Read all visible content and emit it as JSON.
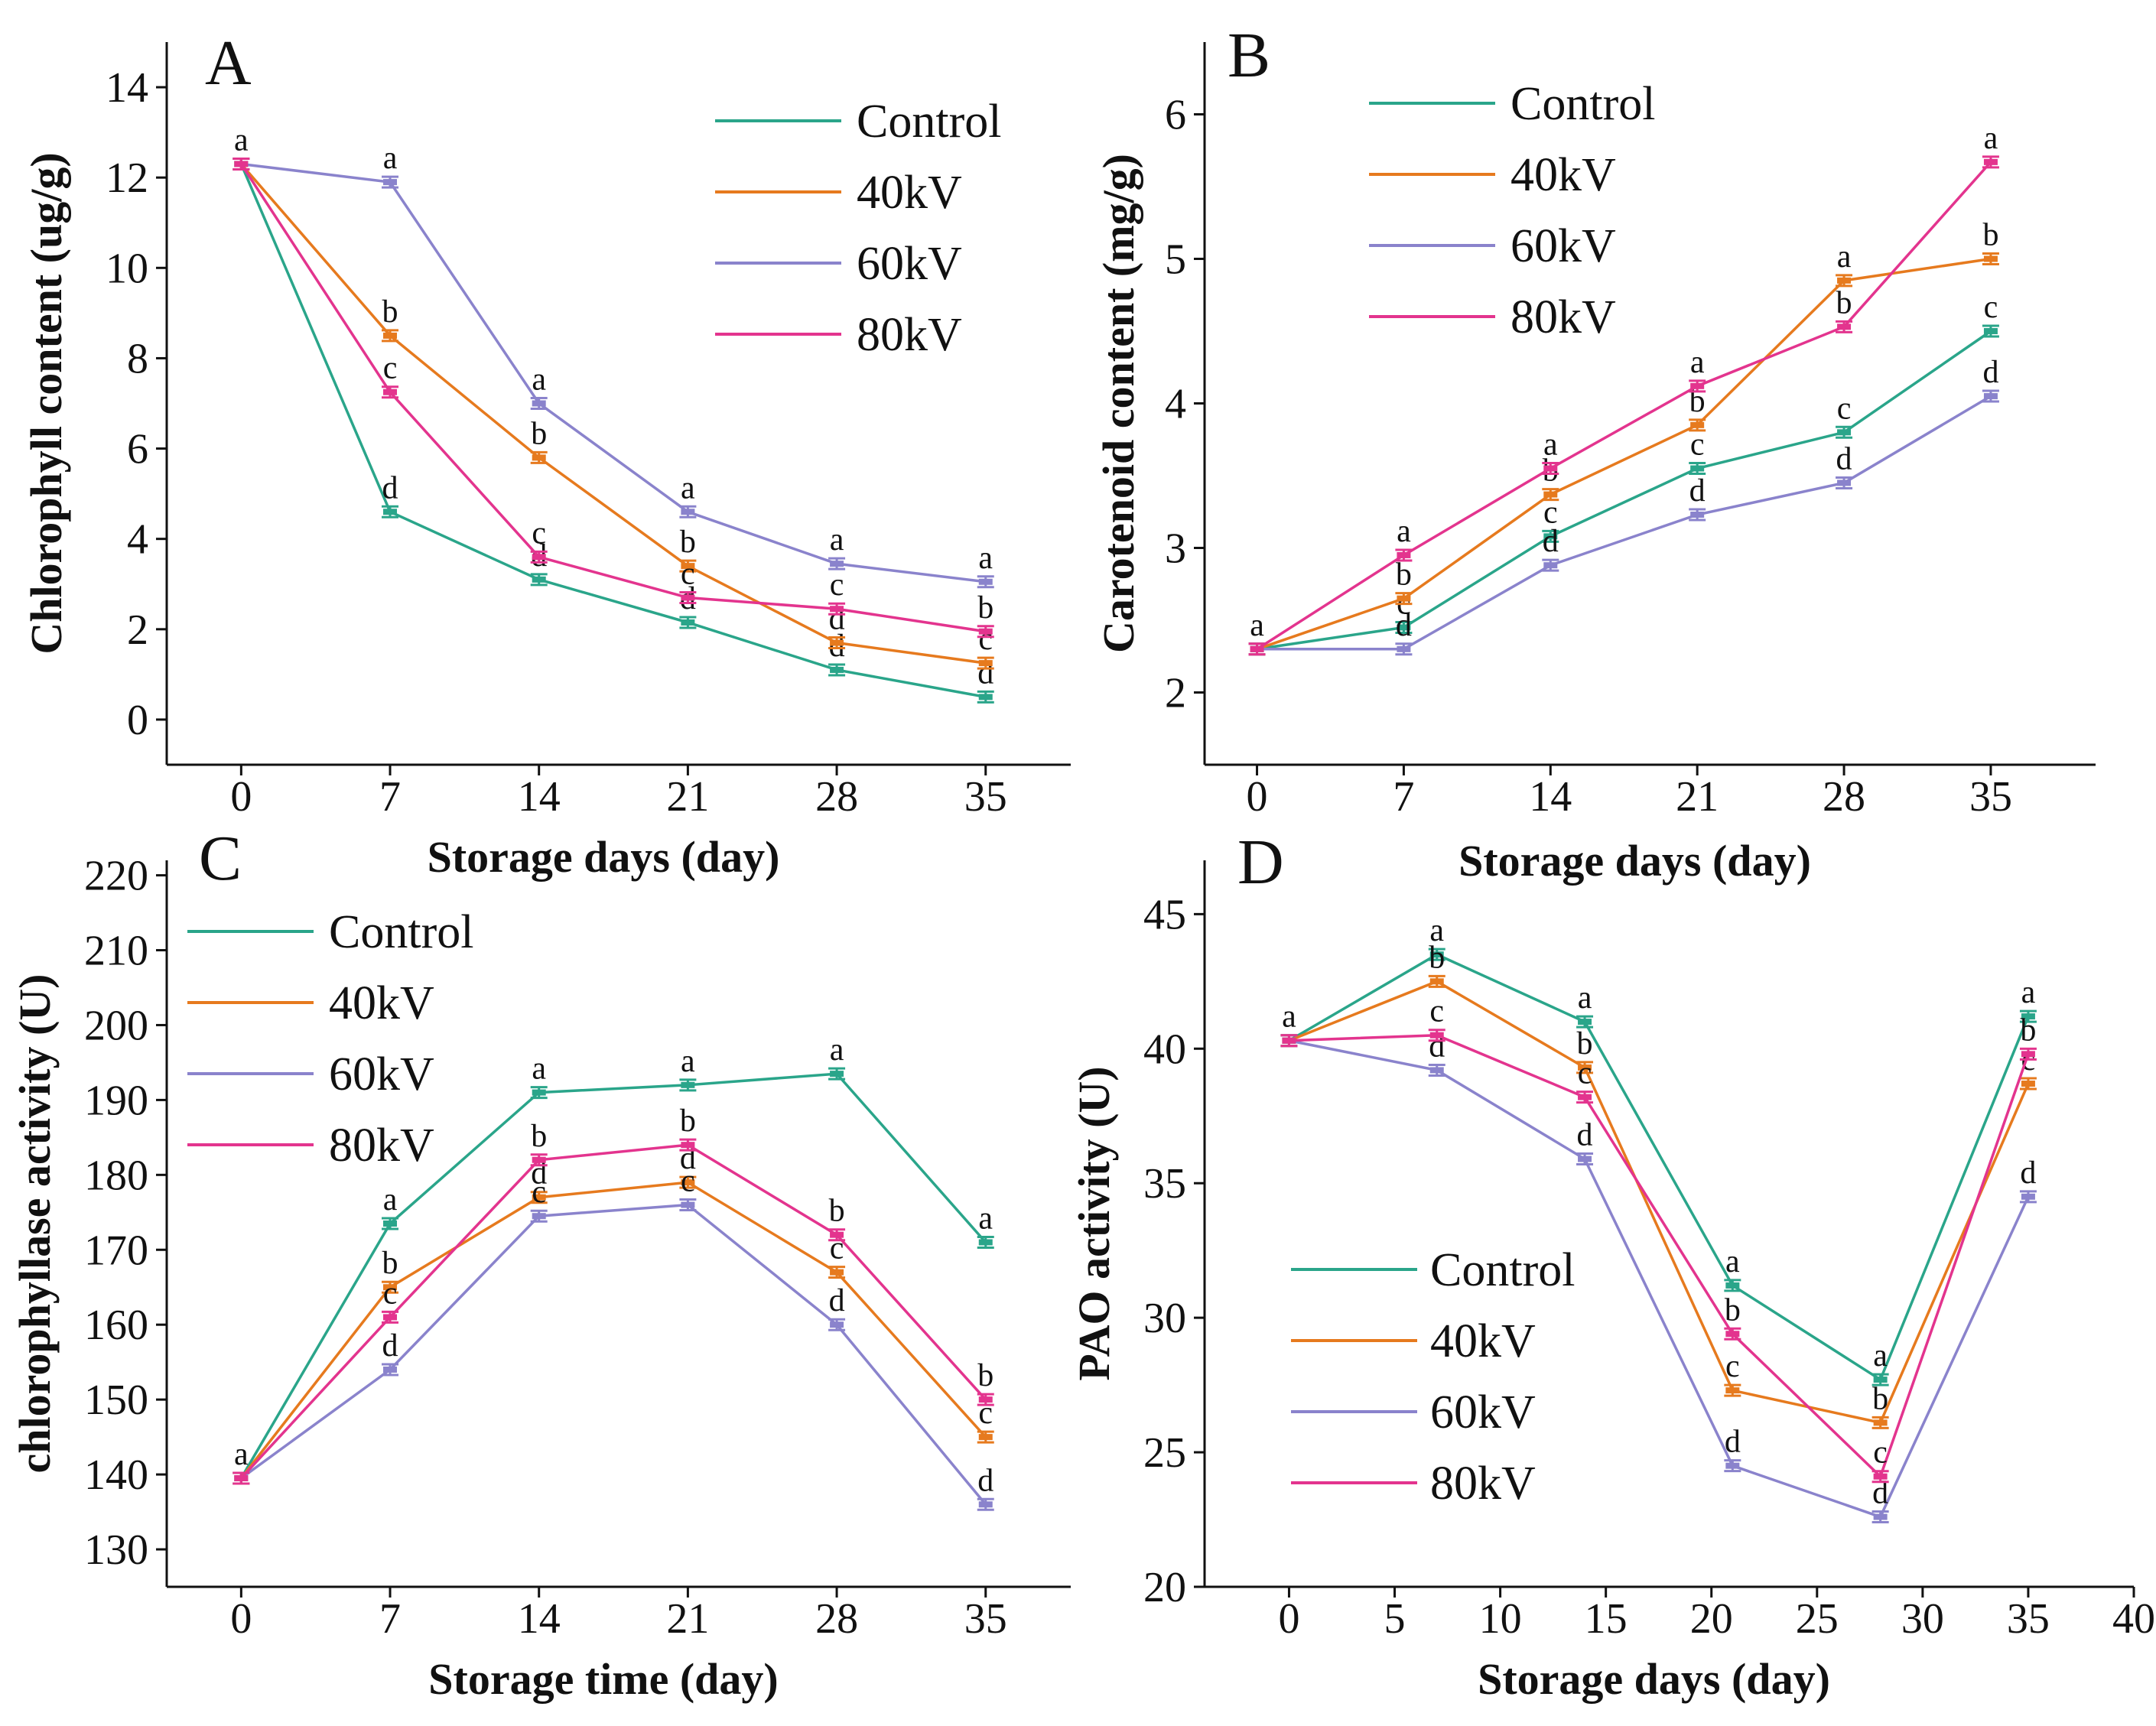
{
  "figure_title": "",
  "colors": {
    "Control": "#2aa58a",
    "40kV": "#e67a1e",
    "60kV": "#8a83cc",
    "80kV": "#e3348e"
  },
  "chart_data": [
    {
      "panel": "A",
      "type": "line",
      "xlabel": "Storage days (day)",
      "ylabel": "Chlorophyll content (ug/g)",
      "x": [
        0,
        7,
        14,
        21,
        28,
        35
      ],
      "xticks": [
        0,
        7,
        14,
        21,
        28,
        35
      ],
      "xlim": [
        -3.5,
        39
      ],
      "yticks": [
        0,
        2,
        4,
        6,
        8,
        10,
        12,
        14
      ],
      "ylim": [
        -1,
        15
      ],
      "legend_position": "top-right",
      "series": [
        {
          "name": "Control",
          "values": [
            12.3,
            4.6,
            3.1,
            2.15,
            1.1,
            0.5
          ],
          "labels": [
            "a",
            "d",
            "d",
            "d",
            "d",
            "d"
          ]
        },
        {
          "name": "40kV",
          "values": [
            12.3,
            8.5,
            5.8,
            3.4,
            1.7,
            1.25
          ],
          "labels": [
            "",
            "b",
            "b",
            "b",
            "d",
            "c"
          ]
        },
        {
          "name": "60kV",
          "values": [
            12.3,
            11.9,
            7.0,
            4.6,
            3.45,
            3.05
          ],
          "labels": [
            "",
            "a",
            "a",
            "a",
            "a",
            "a"
          ]
        },
        {
          "name": "80kV",
          "values": [
            12.3,
            7.25,
            3.6,
            2.7,
            2.45,
            1.95
          ],
          "labels": [
            "",
            "c",
            "c",
            "c",
            "c",
            "b"
          ]
        }
      ]
    },
    {
      "panel": "B",
      "type": "line",
      "xlabel": "Storage days (day)",
      "ylabel": "Carotenoid content (mg/g)",
      "x": [
        0,
        7,
        14,
        21,
        28,
        35
      ],
      "xticks": [
        0,
        7,
        14,
        21,
        28,
        35
      ],
      "xlim": [
        -2.5,
        40
      ],
      "yticks": [
        2,
        3,
        4,
        5,
        6
      ],
      "ylim": [
        1.5,
        6.5
      ],
      "legend_position": "top-left",
      "series": [
        {
          "name": "Control",
          "values": [
            2.3,
            2.45,
            3.08,
            3.55,
            3.8,
            4.5
          ],
          "labels": [
            "a",
            "c",
            "c",
            "c",
            "c",
            "c"
          ]
        },
        {
          "name": "40kV",
          "values": [
            2.3,
            2.65,
            3.37,
            3.85,
            4.85,
            5.0
          ],
          "labels": [
            "",
            "b",
            "b",
            "b",
            "a",
            "b"
          ]
        },
        {
          "name": "60kV",
          "values": [
            2.3,
            2.3,
            2.88,
            3.23,
            3.45,
            4.05
          ],
          "labels": [
            "",
            "d",
            "d",
            "d",
            "d",
            "d"
          ]
        },
        {
          "name": "80kV",
          "values": [
            2.3,
            2.95,
            3.55,
            4.12,
            4.53,
            5.67
          ],
          "labels": [
            "",
            "a",
            "a",
            "a",
            "b",
            "a"
          ]
        }
      ]
    },
    {
      "panel": "C",
      "type": "line",
      "xlabel": "Storage time (day)",
      "ylabel": "chlorophyllase activity (U)",
      "x": [
        0,
        7,
        14,
        21,
        28,
        35
      ],
      "xticks": [
        0,
        7,
        14,
        21,
        28,
        35
      ],
      "xlim": [
        -3.5,
        39
      ],
      "yticks": [
        130,
        140,
        150,
        160,
        170,
        180,
        190,
        200,
        210,
        220
      ],
      "ylim": [
        125,
        222
      ],
      "legend_position": "top-left",
      "series": [
        {
          "name": "Control",
          "values": [
            139.5,
            173.5,
            191.0,
            192.0,
            193.5,
            171.0
          ],
          "labels": [
            "a",
            "a",
            "a",
            "a",
            "a",
            "a"
          ]
        },
        {
          "name": "40kV",
          "values": [
            139.5,
            165.0,
            177.0,
            179.0,
            167.0,
            145.0
          ],
          "labels": [
            "",
            "b",
            "d",
            "d",
            "c",
            "c"
          ]
        },
        {
          "name": "60kV",
          "values": [
            139.5,
            154.0,
            174.5,
            176.0,
            160.0,
            136.0
          ],
          "labels": [
            "",
            "d",
            "c",
            "c",
            "d",
            "d"
          ]
        },
        {
          "name": "80kV",
          "values": [
            139.5,
            161.0,
            182.0,
            184.0,
            172.0,
            150.0
          ],
          "labels": [
            "",
            "c",
            "b",
            "b",
            "b",
            "b"
          ]
        }
      ]
    },
    {
      "panel": "D",
      "type": "line",
      "xlabel": "Storage days (day)",
      "ylabel": "PAO activity (U)",
      "x": [
        0,
        7,
        14,
        21,
        28,
        35
      ],
      "xticks": [
        0,
        5,
        10,
        15,
        20,
        25,
        30,
        35,
        40
      ],
      "xlim": [
        -4,
        40
      ],
      "yticks": [
        20,
        25,
        30,
        35,
        40,
        45
      ],
      "ylim": [
        20,
        47
      ],
      "legend_position": "bottom-left",
      "series": [
        {
          "name": "Control",
          "values": [
            40.3,
            43.5,
            41.0,
            31.2,
            27.7,
            41.2
          ],
          "labels": [
            "a",
            "a",
            "a",
            "a",
            "a",
            "a"
          ]
        },
        {
          "name": "40kV",
          "values": [
            40.3,
            42.5,
            39.3,
            27.3,
            26.1,
            38.7
          ],
          "labels": [
            "",
            "b",
            "b",
            "c",
            "b",
            "c"
          ]
        },
        {
          "name": "60kV",
          "values": [
            40.3,
            39.2,
            35.9,
            24.5,
            22.6,
            34.5
          ],
          "labels": [
            "",
            "d",
            "d",
            "d",
            "d",
            "d"
          ]
        },
        {
          "name": "80kV",
          "values": [
            40.3,
            40.5,
            38.2,
            29.4,
            24.1,
            39.8
          ],
          "labels": [
            "",
            "c",
            "c",
            "b",
            "c",
            "b"
          ]
        }
      ]
    }
  ]
}
